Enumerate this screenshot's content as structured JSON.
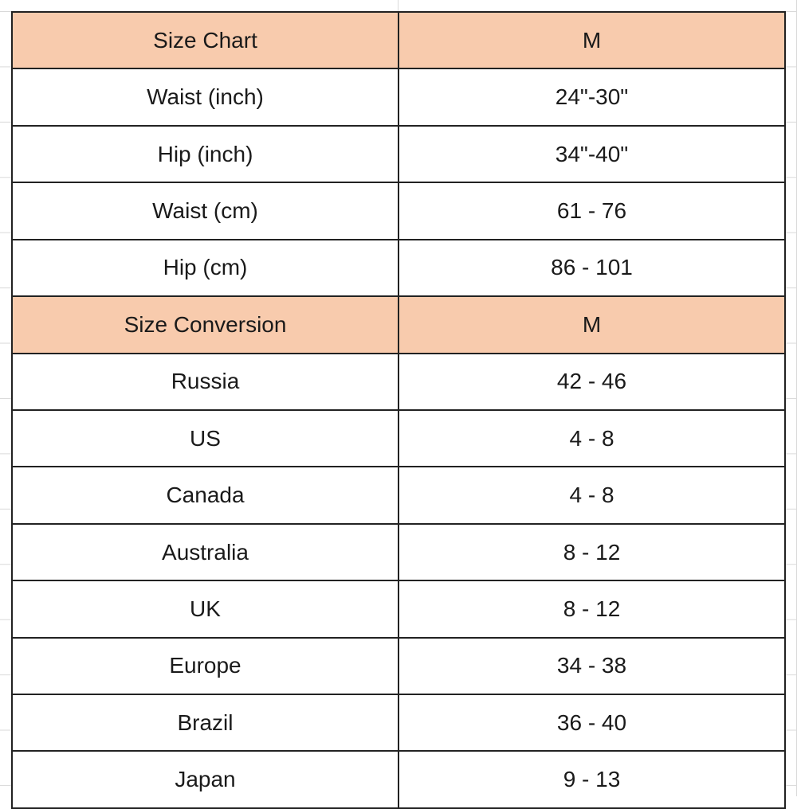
{
  "sections": [
    {
      "header": [
        "Size Chart",
        "M"
      ],
      "rows": [
        [
          "Waist (inch)",
          "24\"-30\""
        ],
        [
          "Hip (inch)",
          "34\"-40\""
        ],
        [
          "Waist (cm)",
          "61 - 76"
        ],
        [
          "Hip (cm)",
          "86 - 101"
        ]
      ]
    },
    {
      "header": [
        "Size Conversion",
        "M"
      ],
      "rows": [
        [
          "Russia",
          "42 - 46"
        ],
        [
          "US",
          "4 - 8"
        ],
        [
          "Canada",
          "4 - 8"
        ],
        [
          "Australia",
          "8 - 12"
        ],
        [
          "UK",
          "8 - 12"
        ],
        [
          "Europe",
          "34 - 38"
        ],
        [
          "Brazil",
          "36 - 40"
        ],
        [
          "Japan",
          "9 - 13"
        ]
      ]
    }
  ]
}
